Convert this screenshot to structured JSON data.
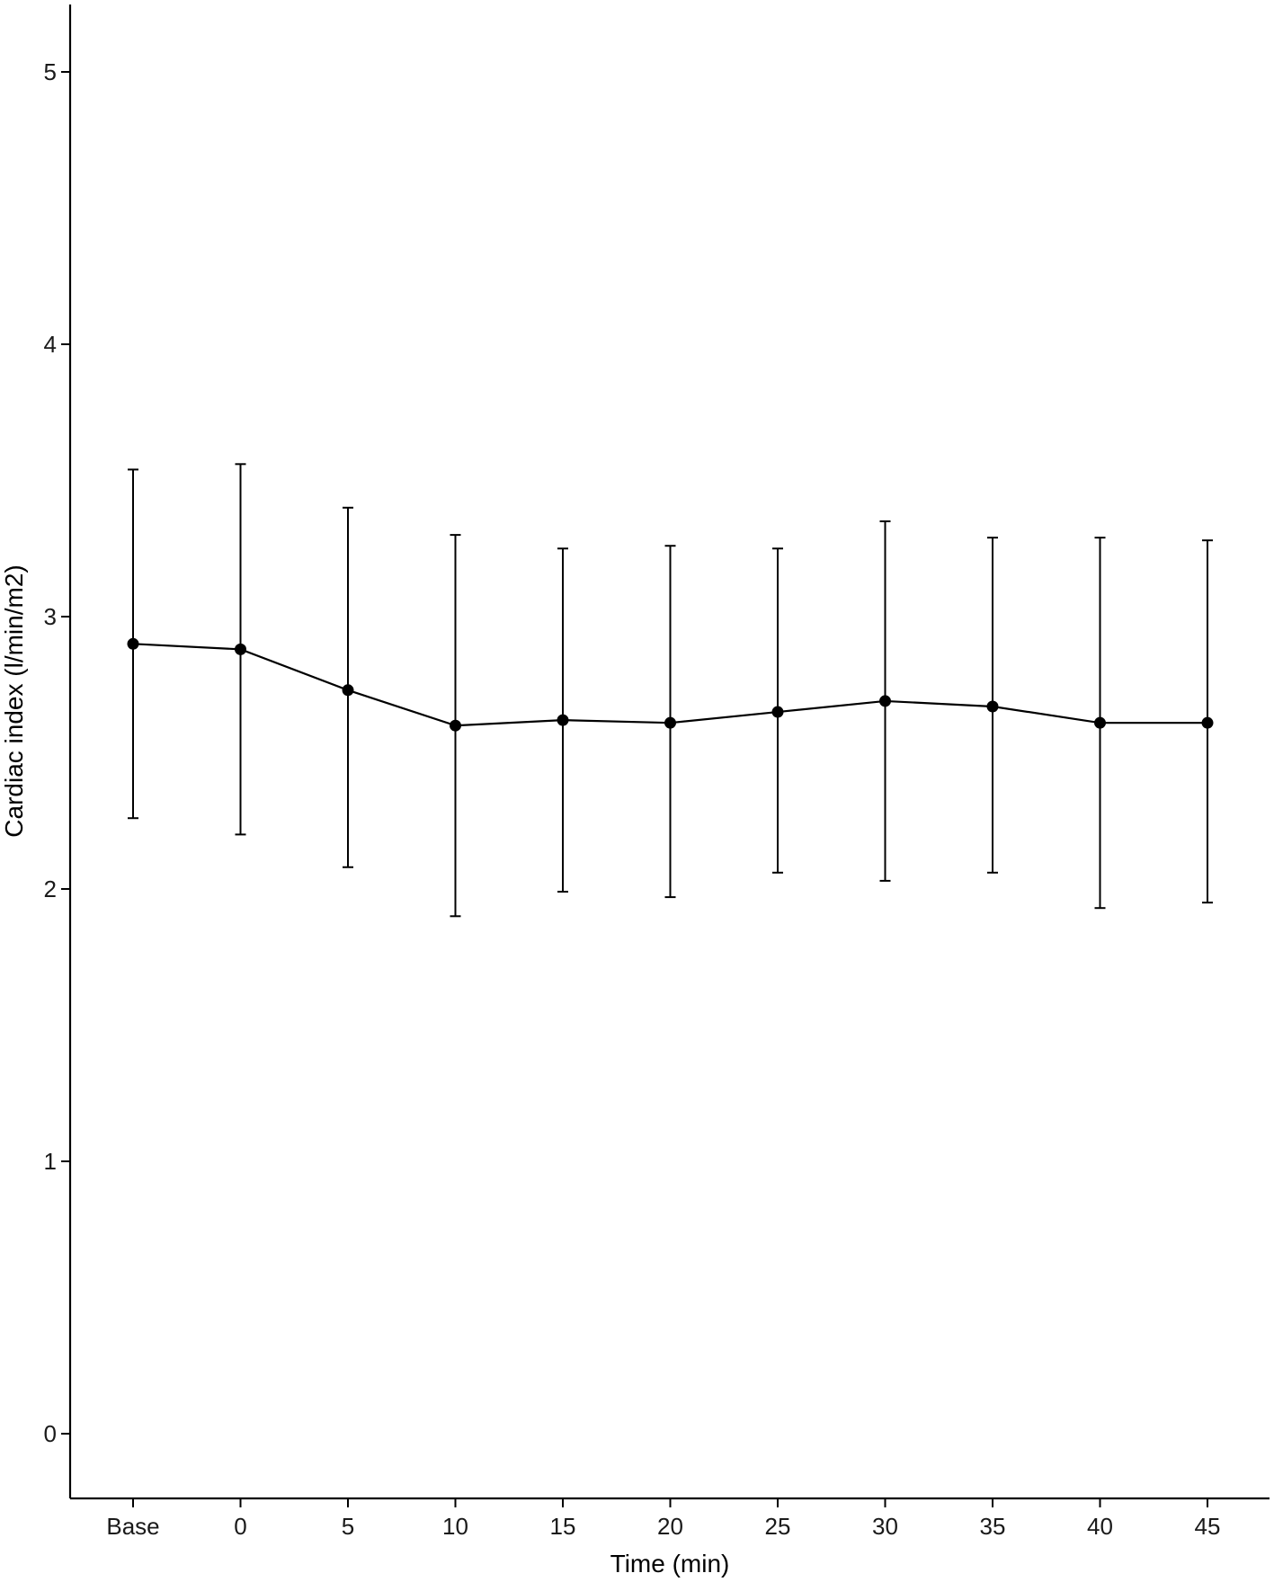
{
  "chart_data": {
    "type": "line",
    "title": "",
    "xlabel": "Time (min)",
    "ylabel": "Cardiac index (l/min/m2)",
    "categories": [
      "Base",
      "0",
      "5",
      "10",
      "15",
      "20",
      "25",
      "30",
      "35",
      "40",
      "45"
    ],
    "series": [
      {
        "values": [
          2.9,
          2.88,
          2.73,
          2.6,
          2.62,
          2.61,
          2.65,
          2.69,
          2.67,
          2.61,
          2.61
        ],
        "error_upper": [
          3.54,
          3.56,
          3.4,
          3.3,
          3.25,
          3.26,
          3.25,
          3.35,
          3.29,
          3.29,
          3.28
        ],
        "error_lower": [
          2.26,
          2.2,
          2.08,
          1.9,
          1.99,
          1.97,
          2.06,
          2.03,
          2.06,
          1.93,
          1.95
        ],
        "color": "#000000"
      }
    ],
    "yticks": [
      0,
      1,
      2,
      3,
      4,
      5
    ],
    "ylim": [
      -0.25,
      5.25
    ],
    "grid": false,
    "legend": "none"
  }
}
